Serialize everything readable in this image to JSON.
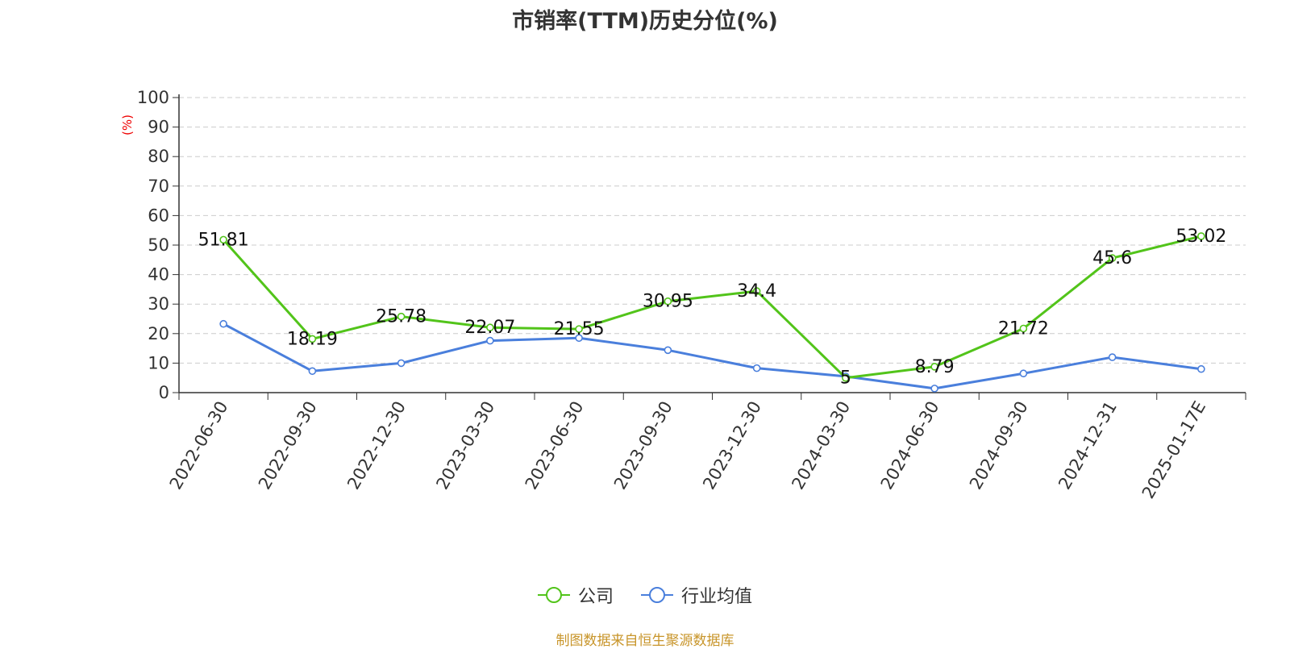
{
  "chart_data": {
    "type": "line",
    "title": "市销率(TTM)历史分位(%)",
    "ylabel": "(%)",
    "xlabel": "",
    "ylim": [
      0,
      100
    ],
    "yticks": [
      0,
      10,
      20,
      30,
      40,
      50,
      60,
      70,
      80,
      90,
      100
    ],
    "grid": true,
    "legend_position": "bottom",
    "categories": [
      "2022-06-30",
      "2022-09-30",
      "2022-12-30",
      "2023-03-30",
      "2023-06-30",
      "2023-09-30",
      "2023-12-30",
      "2024-03-30",
      "2024-06-30",
      "2024-09-30",
      "2024-12-31",
      "2025-01-17E"
    ],
    "series": [
      {
        "name": "公司",
        "color": "#52c41a",
        "show_labels": true,
        "values": [
          51.81,
          18.19,
          25.78,
          22.07,
          21.55,
          30.95,
          34.4,
          5,
          8.79,
          21.72,
          45.6,
          53.02
        ]
      },
      {
        "name": "行业均值",
        "color": "#4a7fdc",
        "show_labels": false,
        "values": [
          23.3,
          7.3,
          10.0,
          17.6,
          18.5,
          14.4,
          8.3,
          5.5,
          1.4,
          6.5,
          12.0,
          8.0
        ]
      }
    ]
  },
  "source_note": "制图数据来自恒生聚源数据库"
}
